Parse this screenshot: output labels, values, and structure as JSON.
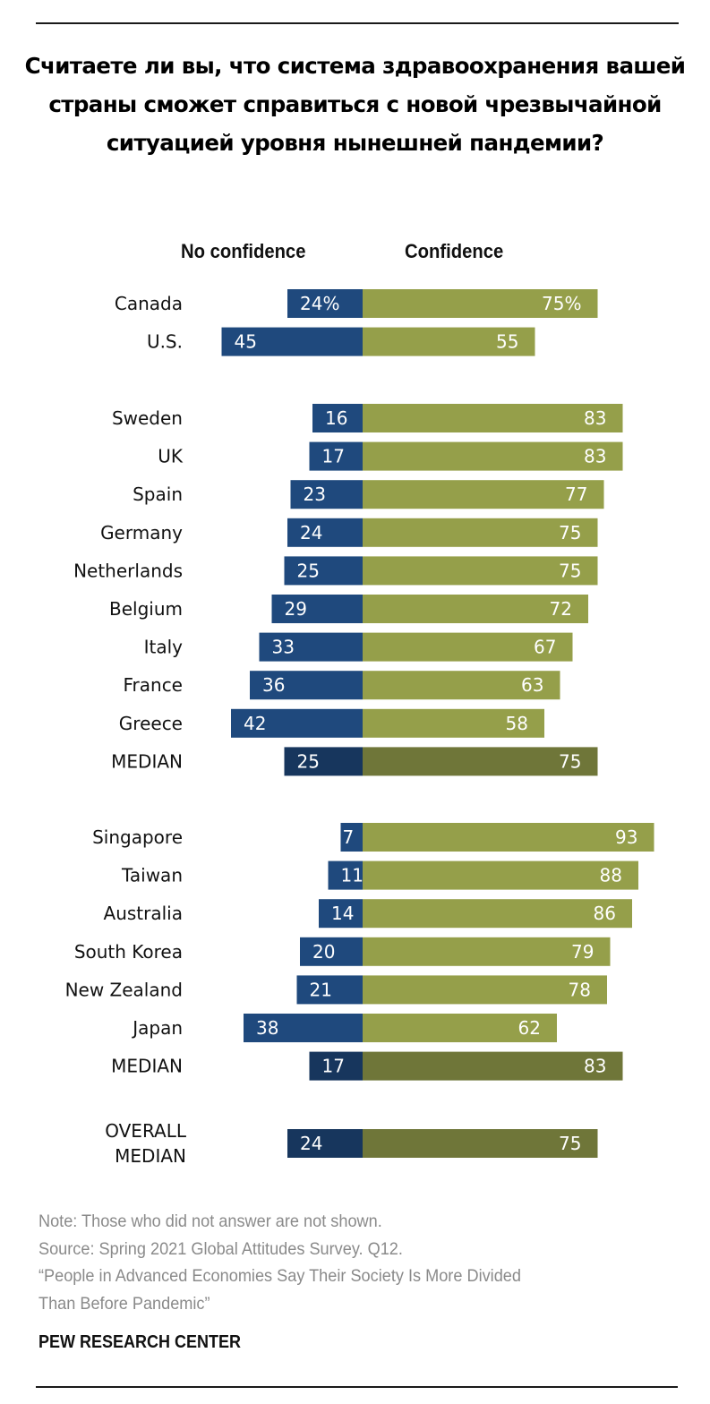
{
  "title": "Считаете ли вы, что система здравоохранения вашей страны сможет справиться с новой чрезвычайной ситуацией уровня нынешней пандемии?",
  "colors": {
    "no_confidence": "#1f497d",
    "confidence": "#959f4a",
    "median_no_confidence": "#17365d",
    "median_confidence": "#6f7639",
    "text_on_bar": "#ffffff"
  },
  "chart_data": {
    "type": "bar",
    "orientation": "horizontal-diverging",
    "title": "Считаете ли вы, что система здравоохранения вашей страны сможет справиться с новой чрезвычайной ситуацией уровня нынешней пандемии?",
    "legend": [
      "No confidence",
      "Confidence"
    ],
    "unit": "%",
    "groups": [
      {
        "rows": [
          {
            "label": "Canada",
            "no_confidence": 24,
            "confidence": 75,
            "no_text": "24%",
            "yes_text": "75%",
            "median": false
          },
          {
            "label": "U.S.",
            "no_confidence": 45,
            "confidence": 55,
            "no_text": "45",
            "yes_text": "55",
            "median": false
          }
        ]
      },
      {
        "rows": [
          {
            "label": "Sweden",
            "no_confidence": 16,
            "confidence": 83,
            "no_text": "16",
            "yes_text": "83",
            "median": false
          },
          {
            "label": "UK",
            "no_confidence": 17,
            "confidence": 83,
            "no_text": "17",
            "yes_text": "83",
            "median": false
          },
          {
            "label": "Spain",
            "no_confidence": 23,
            "confidence": 77,
            "no_text": "23",
            "yes_text": "77",
            "median": false
          },
          {
            "label": "Germany",
            "no_confidence": 24,
            "confidence": 75,
            "no_text": "24",
            "yes_text": "75",
            "median": false
          },
          {
            "label": "Netherlands",
            "no_confidence": 25,
            "confidence": 75,
            "no_text": "25",
            "yes_text": "75",
            "median": false
          },
          {
            "label": "Belgium",
            "no_confidence": 29,
            "confidence": 72,
            "no_text": "29",
            "yes_text": "72",
            "median": false
          },
          {
            "label": "Italy",
            "no_confidence": 33,
            "confidence": 67,
            "no_text": "33",
            "yes_text": "67",
            "median": false
          },
          {
            "label": "France",
            "no_confidence": 36,
            "confidence": 63,
            "no_text": "36",
            "yes_text": "63",
            "median": false
          },
          {
            "label": "Greece",
            "no_confidence": 42,
            "confidence": 58,
            "no_text": "42",
            "yes_text": "58",
            "median": false
          },
          {
            "label": "MEDIAN",
            "no_confidence": 25,
            "confidence": 75,
            "no_text": "25",
            "yes_text": "75",
            "median": true
          }
        ]
      },
      {
        "rows": [
          {
            "label": "Singapore",
            "no_confidence": 7,
            "confidence": 93,
            "no_text": "7",
            "yes_text": "93",
            "median": false
          },
          {
            "label": "Taiwan",
            "no_confidence": 11,
            "confidence": 88,
            "no_text": "11",
            "yes_text": "88",
            "median": false
          },
          {
            "label": "Australia",
            "no_confidence": 14,
            "confidence": 86,
            "no_text": "14",
            "yes_text": "86",
            "median": false
          },
          {
            "label": "South Korea",
            "no_confidence": 20,
            "confidence": 79,
            "no_text": "20",
            "yes_text": "79",
            "median": false
          },
          {
            "label": "New Zealand",
            "no_confidence": 21,
            "confidence": 78,
            "no_text": "21",
            "yes_text": "78",
            "median": false
          },
          {
            "label": "Japan",
            "no_confidence": 38,
            "confidence": 62,
            "no_text": "38",
            "yes_text": "62",
            "median": false
          },
          {
            "label": "MEDIAN",
            "no_confidence": 17,
            "confidence": 83,
            "no_text": "17",
            "yes_text": "83",
            "median": true
          }
        ]
      },
      {
        "rows": [
          {
            "label": "OVERALL MEDIAN",
            "label_lines": [
              "OVERALL",
              "MEDIAN"
            ],
            "no_confidence": 24,
            "confidence": 75,
            "no_text": "24",
            "yes_text": "75",
            "median": true
          }
        ]
      }
    ],
    "xlim": [
      -50,
      100
    ],
    "grid": false
  },
  "headers": {
    "no_confidence": "No confidence",
    "confidence": "Confidence"
  },
  "notes": {
    "note": "Note: Those who did not answer are not shown.",
    "source": "Source: Spring 2021 Global Attitudes Survey. Q12.",
    "report_line1": "“People in Advanced Economies Say Their Society Is More Divided",
    "report_line2": "Than Before Pandemic”"
  },
  "brand": "PEW RESEARCH CENTER"
}
